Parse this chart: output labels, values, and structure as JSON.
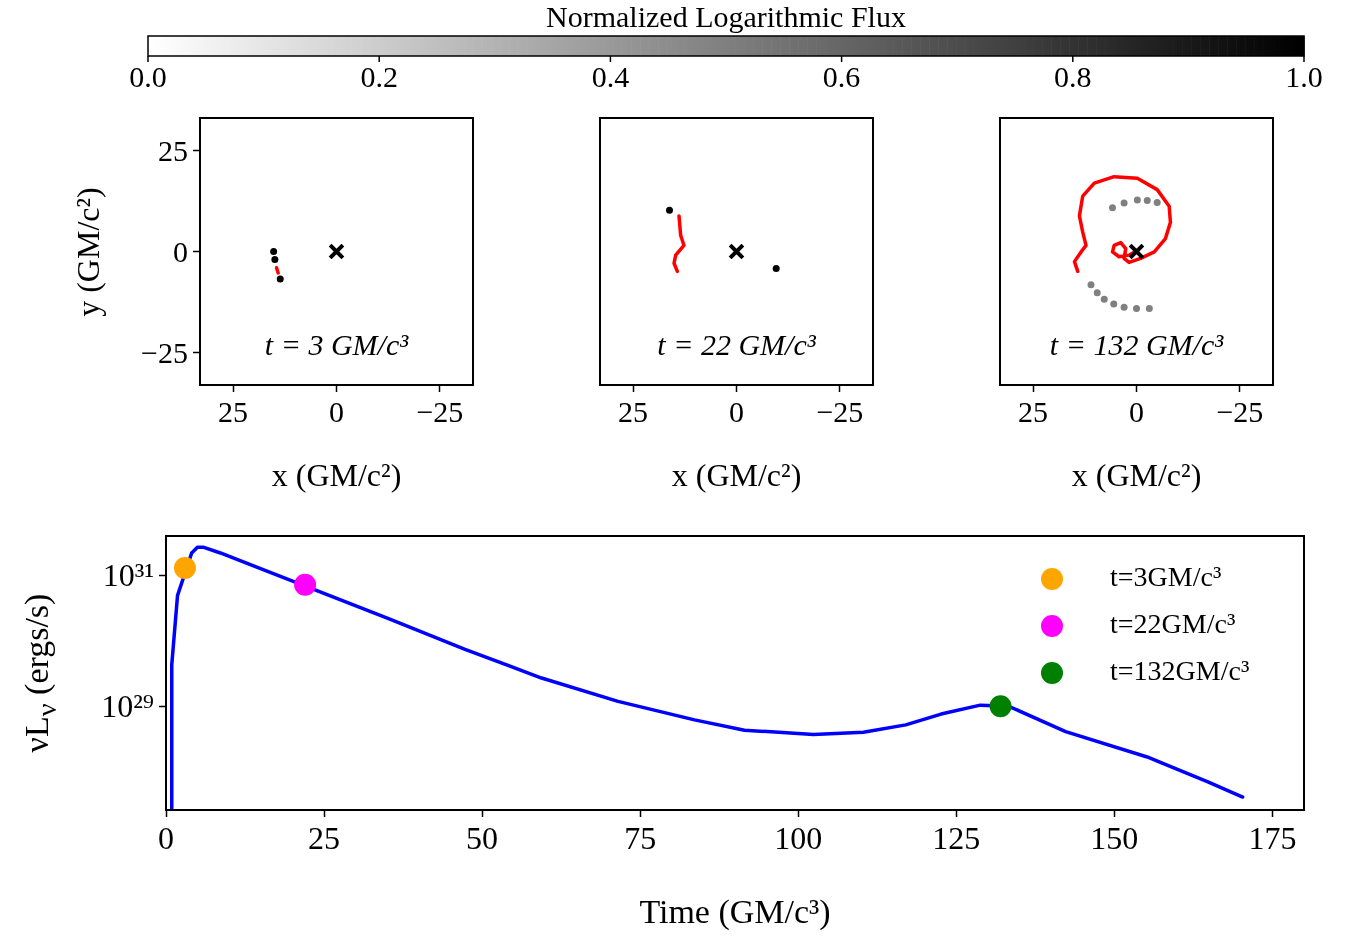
{
  "chart_data": [
    {
      "type": "scatter",
      "xlabel": "x (GM/c²)",
      "ylabel": "y (GM/c²)",
      "xlim": [
        33,
        -33
      ],
      "ylim": [
        -33,
        33
      ],
      "xticks": [
        25,
        0,
        -25
      ],
      "yticks": [
        -25,
        0,
        25
      ],
      "clabel": "Normalized Logarithmic Flux",
      "clim": [
        0,
        1
      ],
      "cticks": [
        {
          "value": 0,
          "label": "0.0"
        },
        0.2,
        0.4,
        0.6,
        0.8,
        {
          "value": 1,
          "label": "1.0"
        }
      ],
      "annotations": [
        "t = 3 GM/c³"
      ],
      "series": [
        {
          "x": [
            15.2,
            14.9,
            13.6
          ],
          "values": [
            0,
            -2,
            -6.8
          ],
          "cvalues": [
            1,
            1,
            1
          ]
        },
        {
          "type": "line",
          "color": "#ff0000",
          "x": [
            14.5,
            14.1
          ],
          "values": [
            -4.0,
            -5.3
          ]
        },
        {
          "type": "scatter",
          "marker": "cross",
          "color": "#000000",
          "x": [
            0
          ],
          "values": [
            0
          ]
        }
      ]
    },
    {
      "type": "scatter",
      "xlabel": "x (GM/c²)",
      "xlim": [
        33,
        -33
      ],
      "ylim": [
        -33,
        33
      ],
      "xticks": [
        25,
        0,
        -25
      ],
      "yticks": [
        -25,
        0,
        25
      ],
      "tick_labels": "x",
      "annotations": [
        "t = 22 GM/c³"
      ],
      "series": [
        {
          "color": "#000000",
          "x": [
            16.2,
            -9.6
          ],
          "values": [
            10.2,
            -4.2
          ]
        },
        {
          "type": "line",
          "color": "#ff0000",
          "x": [
            13.9,
            13.5,
            12.7,
            14.7,
            15.1,
            14.3
          ],
          "values": [
            8.8,
            4.0,
            1.5,
            -0.9,
            -2.9,
            -4.9
          ]
        },
        {
          "type": "scatter",
          "marker": "cross",
          "color": "#000000",
          "x": [
            0
          ],
          "values": [
            0
          ]
        }
      ]
    },
    {
      "type": "scatter",
      "xlabel": "x (GM/c²)",
      "xlim": [
        33,
        -33
      ],
      "ylim": [
        -33,
        33
      ],
      "xticks": [
        25,
        0,
        -25
      ],
      "yticks": [
        -25,
        0,
        25
      ],
      "tick_labels": "x",
      "annotations": [
        "t = 132 GM/c³"
      ],
      "series": [
        {
          "x": [
            5.8,
            3,
            -0.2,
            -2.6,
            -5.0,
            11.0,
            9.5,
            7.8,
            5.5,
            3.0,
            0,
            -3.1
          ],
          "values": [
            10.8,
            12,
            12.7,
            12.6,
            12.1,
            -8.2,
            -10.2,
            -11.8,
            -13,
            -13.8,
            -14.1,
            -14.1
          ],
          "color": "#808080"
        },
        {
          "type": "line",
          "color": "#ff0000",
          "x": [
            14.2,
            15.0,
            13.4,
            12.2,
            13.0,
            13.8,
            13.0,
            10.2,
            5.4,
            -0.2,
            -5.0,
            -7.9,
            -8.2,
            -7.0,
            -4.3,
            -1.0,
            1.8,
            3.0,
            2.6,
            3.8,
            5.4,
            5.8,
            4.2,
            1.8,
            -0.2
          ],
          "values": [
            -4.9,
            -2.5,
            -0.1,
            1.5,
            4.8,
            8.8,
            13.7,
            16.9,
            18.5,
            18.1,
            15.3,
            11.2,
            7.2,
            3.2,
            -0.1,
            -1.7,
            -2.7,
            -1.7,
            0.7,
            2.2,
            1.5,
            -0.1,
            -1.3,
            -0.9,
            0.3
          ]
        },
        {
          "type": "scatter",
          "marker": "cross",
          "color": "#000000",
          "x": [
            0
          ],
          "values": [
            0
          ]
        }
      ]
    },
    {
      "type": "line",
      "xlabel": "Time (GM/c³)",
      "ylabel": "νL$_{ν}$ (ergs/s)",
      "xlim": [
        0,
        180
      ],
      "xticks": [
        0,
        25,
        50,
        75,
        100,
        125,
        150,
        175
      ],
      "ylim": [
        2.6e+27,
        4e+31
      ],
      "yticks": [
        {
          "value": 1e+29,
          "label": "10²⁹"
        },
        {
          "value": 1e+31,
          "label": "10³¹"
        }
      ],
      "log": true,
      "legend": "top right",
      "series": [
        {
          "color": "#0000ff",
          "x": [
            0.91,
            0.91,
            1.82,
            4.06,
            4.97,
            5.87,
            8.6,
            14.05,
            35.2,
            47.3,
            59.4,
            71.5,
            83.6,
            91.5,
            95.1,
            102.4,
            110.3,
            117.0,
            122.6,
            128.8,
            133.3,
            142.3,
            155.2,
            164.8,
            170.3
          ],
          "values": [
            2.6e+27,
            4.3e+29,
            4.9e+30,
            2.2e+31,
            2.7e+31,
            2.7e+31,
            2.2e+31,
            1.37e+31,
            2.19e+30,
            7.4e+29,
            2.7e+29,
            1.19e+29,
            6.2e+28,
            4.3e+28,
            4.1e+28,
            3.7e+28,
            4e+28,
            5.2e+28,
            7.6e+28,
            1.04e+29,
            1e+29,
            4.1e+28,
            1.68e+28,
            7e+27,
            4.1e+27
          ]
        },
        {
          "type": "scatter",
          "name": "t=3GM/c³",
          "color": "#ffa500",
          "marker": "circle",
          "x": [
            3
          ],
          "values": [
            1.3e+31
          ]
        },
        {
          "type": "scatter",
          "name": "t=22GM/c³",
          "color": "#ff00ff",
          "marker": "circle",
          "x": [
            22
          ],
          "values": [
            7.2e+30
          ]
        },
        {
          "type": "scatter",
          "name": "t=132GM/c³",
          "color": "#008000",
          "marker": "circle",
          "x": [
            132
          ],
          "values": [
            1e+29
          ]
        }
      ]
    }
  ]
}
